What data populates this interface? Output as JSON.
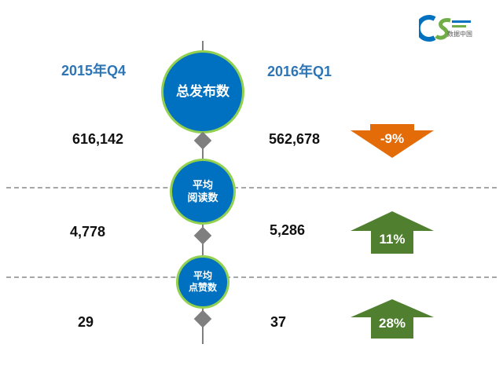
{
  "logo": {
    "letters": "CS",
    "caption": "数据中国"
  },
  "columns": {
    "left": "2015年Q4",
    "right": "2016年Q1"
  },
  "metrics": [
    {
      "label_lines": [
        "总发布数"
      ],
      "q4": "616,142",
      "q1": "562,678",
      "change": "-9%",
      "direction": "down",
      "color": "#E36C09"
    },
    {
      "label_lines": [
        "平均",
        "阅读数"
      ],
      "q4": "4,778",
      "q1": "5,286",
      "change": "11%",
      "direction": "up",
      "color": "#4F7F2F"
    },
    {
      "label_lines": [
        "平均",
        "点赞数"
      ],
      "q4": "29",
      "q1": "37",
      "change": "28%",
      "direction": "up",
      "color": "#4F7F2F"
    }
  ],
  "colors": {
    "header": "#2E75B6",
    "circle": "#0070C0",
    "circle_border": "#92D050",
    "axis": "#7F7F7F"
  }
}
